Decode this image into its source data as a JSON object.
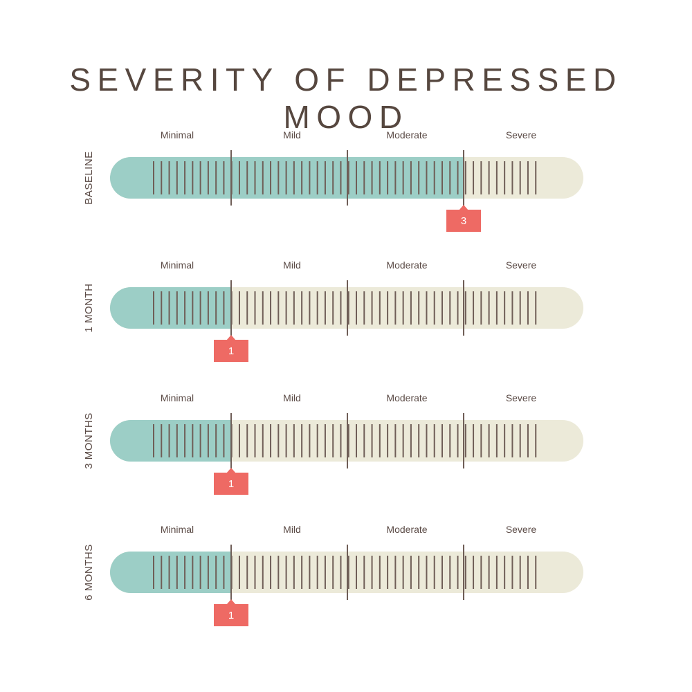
{
  "title": "SEVERITY OF DEPRESSED MOOD",
  "colors": {
    "filled": "#9ccec6",
    "empty": "#ecead9",
    "tick": "#6f5e57",
    "marker": "#ee6a64",
    "text": "#5a4a45"
  },
  "chart_data": {
    "type": "bar",
    "title": "SEVERITY OF DEPRESSED MOOD",
    "categories": [
      "Minimal",
      "Mild",
      "Moderate",
      "Severe"
    ],
    "scale_max": 4,
    "grid": true,
    "series": [
      {
        "name": "BASELINE",
        "value": 3,
        "label": "3"
      },
      {
        "name": "1 MONTH",
        "value": 1,
        "label": "1"
      },
      {
        "name": "3 MONTHS",
        "value": 1,
        "label": "1"
      },
      {
        "name": "6 MONTHS",
        "value": 1,
        "label": "1"
      }
    ]
  }
}
